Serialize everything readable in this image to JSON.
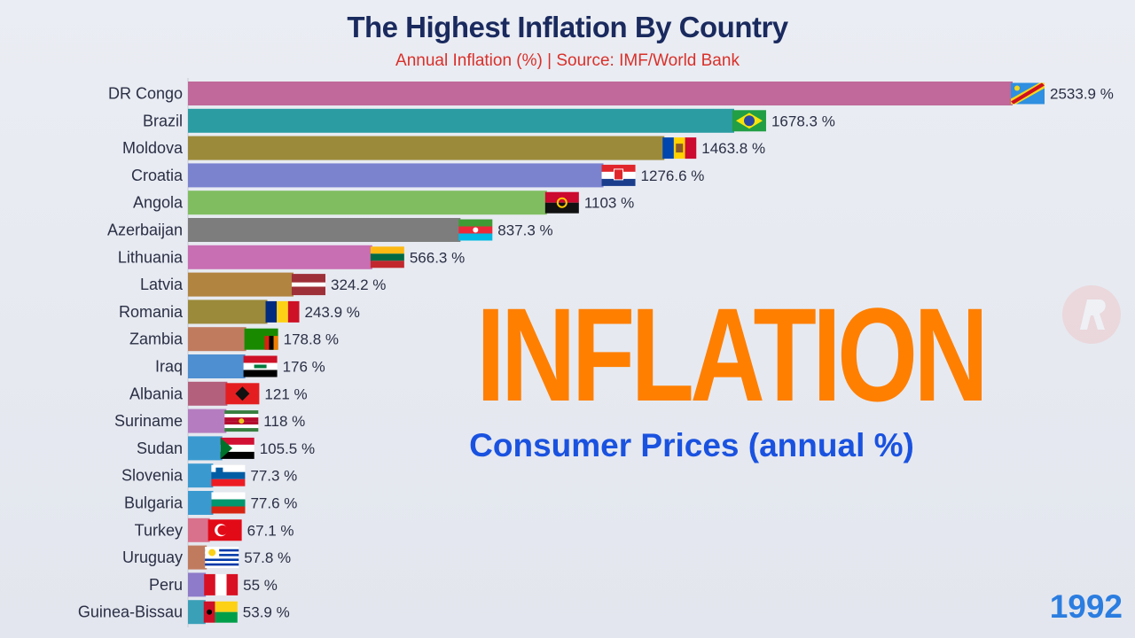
{
  "header": {
    "title": "The Highest Inflation By Country",
    "subtitle": "Annual Inflation (%) | Source: IMF/World Bank"
  },
  "overlay": {
    "headline": "INFLATION",
    "subheadline": "Consumer Prices (annual %)",
    "year": "1992"
  },
  "colors": {
    "headline": "#ff7f00",
    "subheadline": "#1a52e0",
    "year": "#2b7de0"
  },
  "chart_data": {
    "type": "bar",
    "orientation": "horizontal",
    "unit_suffix": "%",
    "categories": [
      "DR Congo",
      "Brazil",
      "Moldova",
      "Croatia",
      "Angola",
      "Azerbaijan",
      "Lithuania",
      "Latvia",
      "Romania",
      "Zambia",
      "Iraq",
      "Albania",
      "Suriname",
      "Sudan",
      "Slovenia",
      "Bulgaria",
      "Turkey",
      "Uruguay",
      "Peru",
      "Guinea-Bissau"
    ],
    "values": [
      2533.9,
      1678.3,
      1463.8,
      1276.6,
      1103,
      837.3,
      566.3,
      324.2,
      243.9,
      178.8,
      176,
      121,
      118,
      105.5,
      77.3,
      77.6,
      67.1,
      57.8,
      55,
      53.9
    ],
    "value_labels": [
      "2533.9 %",
      "1678.3 %",
      "1463.8 %",
      "1276.6 %",
      "1103 %",
      "837.3 %",
      "566.3 %",
      "324.2 %",
      "243.9 %",
      "178.8 %",
      "176 %",
      "121 %",
      "118 %",
      "105.5 %",
      "77.3 %",
      "77.6 %",
      "67.1 %",
      "57.8 %",
      "55 %",
      "53.9 %"
    ],
    "bar_colors": [
      "#c0699a",
      "#2a9ca2",
      "#9c8a3b",
      "#7b83cf",
      "#80bd60",
      "#7d7d7d",
      "#c86fb3",
      "#b18440",
      "#9c8a3b",
      "#c07b5f",
      "#4e8fd1",
      "#b3607c",
      "#b57dc0",
      "#3a9ad0",
      "#3a9ad0",
      "#3a9ad0",
      "#d9718c",
      "#c07b5f",
      "#8e7bc9",
      "#3aa0b8"
    ],
    "flags": [
      "flag-drcongo",
      "flag-brazil",
      "flag-moldova",
      "flag-croatia",
      "flag-angola",
      "flag-azerbaijan",
      "flag-lithuania",
      "flag-latvia",
      "flag-romania",
      "flag-zambia",
      "flag-iraq",
      "flag-albania",
      "flag-suriname",
      "flag-sudan",
      "flag-slovenia",
      "flag-bulgaria",
      "flag-turkey",
      "flag-uruguay",
      "flag-peru",
      "flag-guinea-bissau"
    ],
    "xlim": [
      0,
      2533.9
    ],
    "grid": false,
    "legend": "none"
  }
}
